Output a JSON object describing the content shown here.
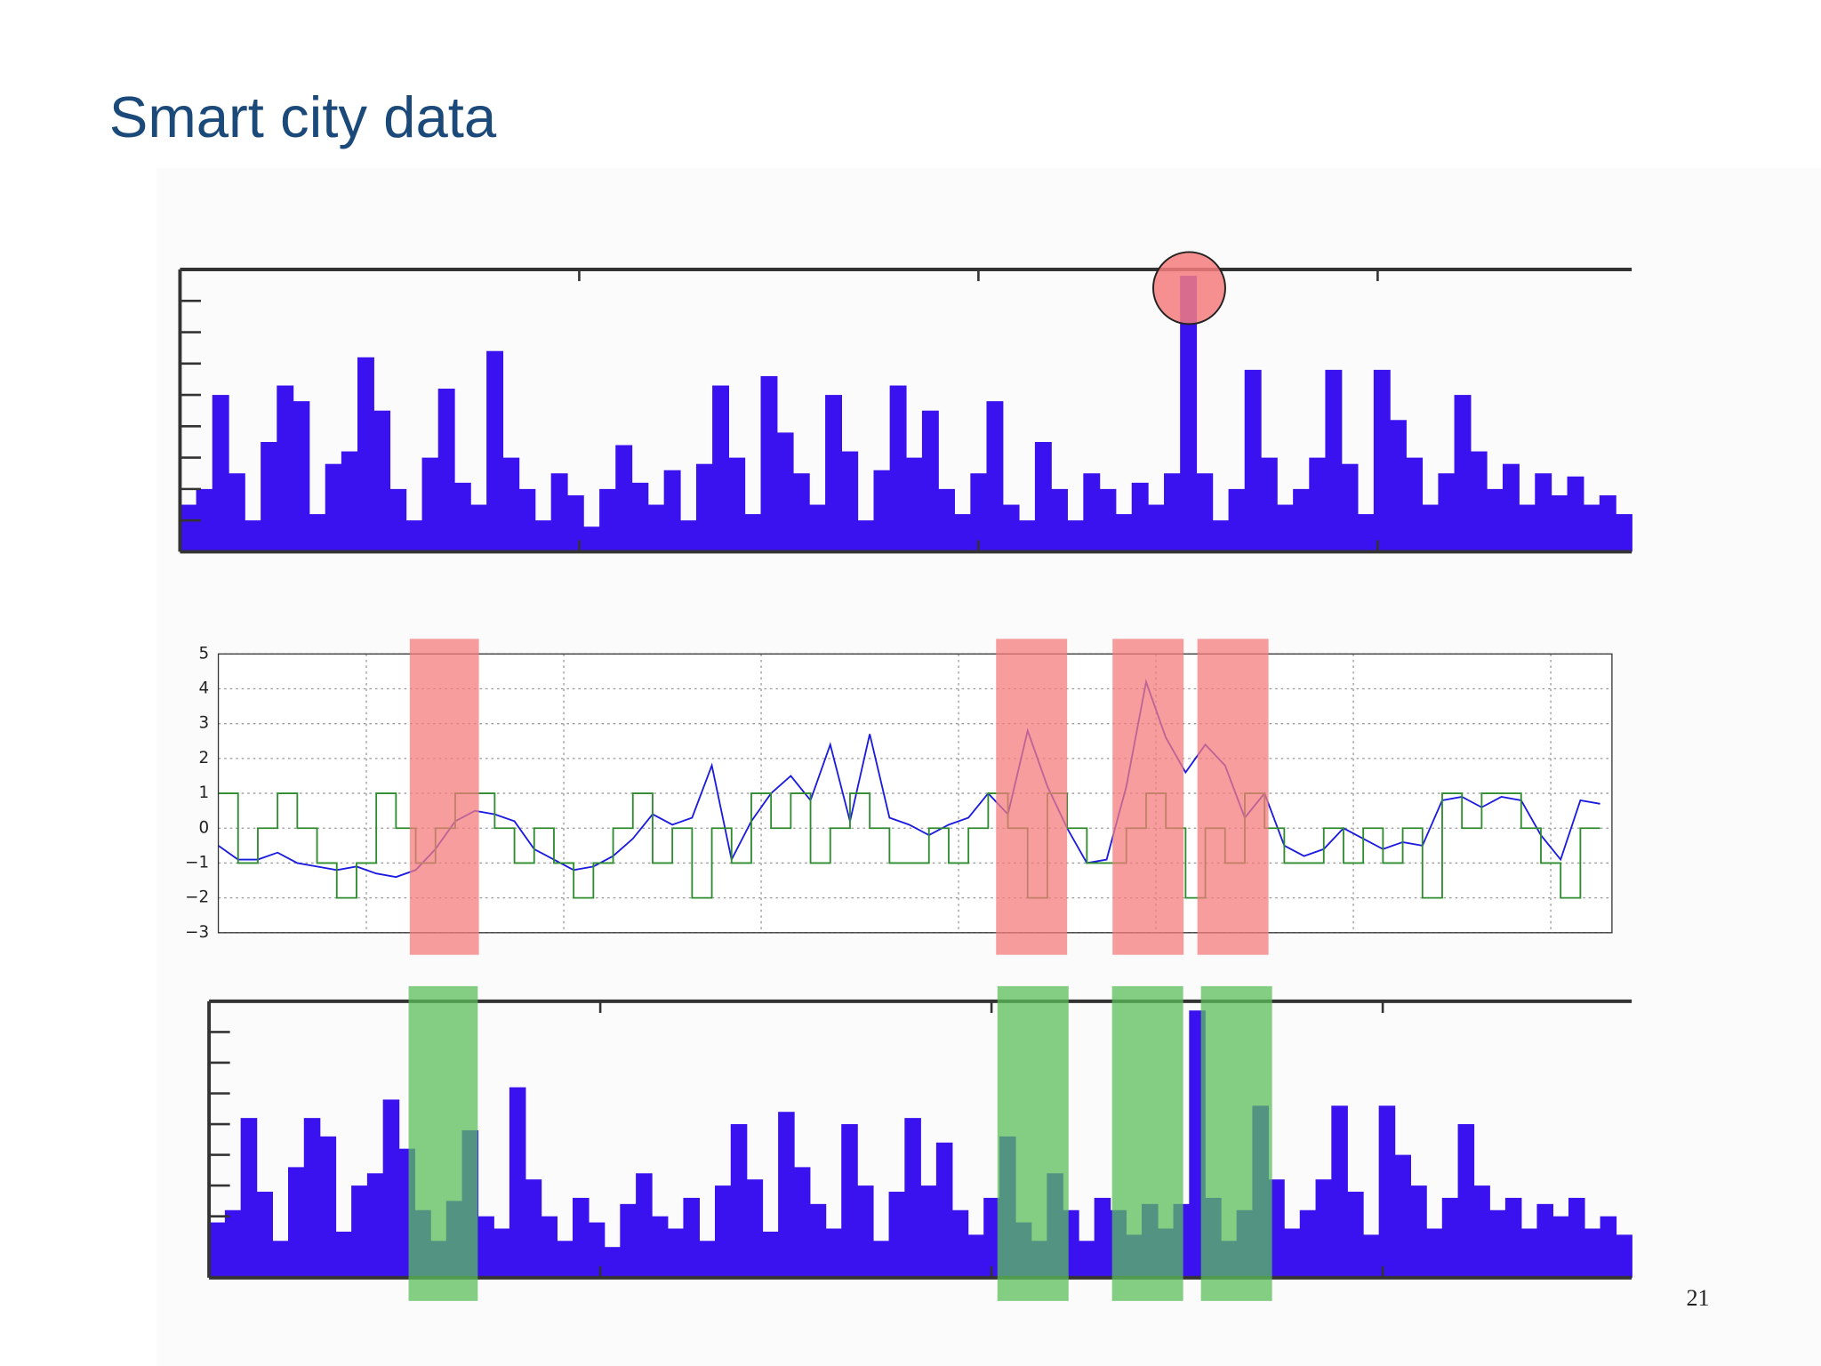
{
  "title": "Smart city data",
  "page_number": "21",
  "chart_data": [
    {
      "type": "bar",
      "color": "#3a12f0",
      "xlim": [
        6,
        741
      ],
      "ylim": [
        0,
        9
      ],
      "yticks": [
        1,
        2,
        3,
        4,
        5,
        6,
        7,
        8
      ],
      "values": [
        1.5,
        2.0,
        5.0,
        2.5,
        1.0,
        3.5,
        5.3,
        4.8,
        1.2,
        2.8,
        3.2,
        6.2,
        4.5,
        2.0,
        1.0,
        3.0,
        5.2,
        2.2,
        1.5,
        6.4,
        3.0,
        2.0,
        1.0,
        2.5,
        1.8,
        0.8,
        2.0,
        3.4,
        2.2,
        1.5,
        2.6,
        1.0,
        2.8,
        5.3,
        3.0,
        1.2,
        5.6,
        3.8,
        2.5,
        1.5,
        5.0,
        3.2,
        1.0,
        2.6,
        5.3,
        3.0,
        4.5,
        2.0,
        1.2,
        2.5,
        4.8,
        1.5,
        1.0,
        3.5,
        2.0,
        1.0,
        2.5,
        2.0,
        1.2,
        2.2,
        1.5,
        2.5,
        8.8,
        2.5,
        1.0,
        2.0,
        5.8,
        3.0,
        1.5,
        2.0,
        3.0,
        5.8,
        2.8,
        1.2,
        5.8,
        4.2,
        3.0,
        1.5,
        2.5,
        5.0,
        3.2,
        2.0,
        2.8,
        1.5,
        2.5,
        1.8,
        2.4,
        1.5,
        1.8,
        1.2
      ]
    },
    {
      "type": "line",
      "xlim": [
        25,
        731
      ],
      "xticks": [
        100,
        200,
        300,
        400,
        500,
        600,
        700
      ],
      "ylim": [
        -3,
        5
      ],
      "yticks": [
        {
          "value": -3,
          "label": "−3"
        },
        {
          "value": -2,
          "label": "−2"
        },
        {
          "value": -1,
          "label": "−1"
        },
        0,
        1,
        2,
        3,
        4,
        5
      ],
      "grid": true,
      "highlights": [
        [
          122,
          157
        ],
        [
          419,
          455
        ],
        [
          478,
          514
        ],
        [
          521,
          557
        ]
      ],
      "highlight_color": "#f47c7c",
      "x": [
        25,
        35,
        45,
        55,
        65,
        75,
        85,
        95,
        105,
        115,
        125,
        135,
        145,
        155,
        165,
        175,
        185,
        195,
        205,
        215,
        225,
        235,
        245,
        255,
        265,
        275,
        285,
        295,
        305,
        315,
        325,
        335,
        345,
        355,
        365,
        375,
        385,
        395,
        405,
        415,
        425,
        435,
        445,
        455,
        465,
        475,
        485,
        495,
        505,
        515,
        525,
        535,
        545,
        555,
        565,
        575,
        585,
        595,
        605,
        615,
        625,
        635,
        645,
        655,
        665,
        675,
        685,
        695,
        705,
        715,
        725
      ],
      "series": [
        {
          "color": "#1a1ae0",
          "values": [
            -0.5,
            -0.9,
            -0.9,
            -0.7,
            -1.0,
            -1.1,
            -1.2,
            -1.1,
            -1.3,
            -1.4,
            -1.2,
            -0.6,
            0.2,
            0.5,
            0.4,
            0.2,
            -0.6,
            -0.9,
            -1.2,
            -1.1,
            -0.8,
            -0.3,
            0.4,
            0.1,
            0.3,
            1.8,
            -0.9,
            0.2,
            1.0,
            1.5,
            0.8,
            2.4,
            0.2,
            2.7,
            0.3,
            0.1,
            -0.2,
            0.1,
            0.3,
            1.0,
            0.4,
            2.8,
            1.2,
            0.0,
            -1.0,
            -0.9,
            1.2,
            4.2,
            2.6,
            1.6,
            2.4,
            1.8,
            0.3,
            1.0,
            -0.5,
            -0.8,
            -0.6,
            0.0,
            -0.3,
            -0.6,
            -0.4,
            -0.5,
            0.8,
            0.9,
            0.6,
            0.9,
            0.8,
            -0.2,
            -0.9,
            0.8,
            0.7
          ]
        },
        {
          "color": "#2e8b2e",
          "step": true,
          "values": [
            1,
            -1,
            0,
            1,
            0,
            -1,
            -2,
            -1,
            1,
            0,
            -1,
            0,
            1,
            1,
            0,
            -1,
            0,
            -1,
            -2,
            -1,
            0,
            1,
            -1,
            0,
            -2,
            0,
            -1,
            1,
            0,
            1,
            -1,
            0,
            1,
            0,
            -1,
            -1,
            0,
            -1,
            0,
            1,
            0,
            -2,
            1,
            0,
            -1,
            -1,
            0,
            1,
            0,
            -2,
            0,
            -1,
            1,
            0,
            -1,
            -1,
            0,
            -1,
            0,
            -1,
            0,
            -2,
            1,
            0,
            1,
            1,
            0,
            -1,
            -2,
            0,
            0
          ]
        }
      ]
    },
    {
      "type": "bar",
      "color": "#3a12f0",
      "xlim": [
        21,
        741
      ],
      "ylim": [
        0,
        9
      ],
      "yticks": [
        2,
        3,
        4,
        5,
        6,
        7,
        8
      ],
      "highlights": [
        [
          122,
          157
        ],
        [
          420,
          456
        ],
        [
          478,
          514
        ],
        [
          523,
          559
        ]
      ],
      "highlight_color": "#5cbf5c",
      "values": [
        1.8,
        2.2,
        5.2,
        2.8,
        1.2,
        3.6,
        5.2,
        4.6,
        1.5,
        3.0,
        3.4,
        5.8,
        4.2,
        2.2,
        1.2,
        2.5,
        4.8,
        2.0,
        1.6,
        6.2,
        3.2,
        2.0,
        1.2,
        2.6,
        1.8,
        1.0,
        2.4,
        3.4,
        2.0,
        1.6,
        2.6,
        1.2,
        3.0,
        5.0,
        3.2,
        1.5,
        5.4,
        3.6,
        2.4,
        1.6,
        5.0,
        3.0,
        1.2,
        2.8,
        5.2,
        3.0,
        4.4,
        2.2,
        1.4,
        2.6,
        4.6,
        1.8,
        1.2,
        3.4,
        2.2,
        1.2,
        2.6,
        2.2,
        1.4,
        2.4,
        1.6,
        2.4,
        8.7,
        2.6,
        1.2,
        2.2,
        5.6,
        3.2,
        1.6,
        2.2,
        3.2,
        5.6,
        2.8,
        1.4,
        5.6,
        4.0,
        3.0,
        1.6,
        2.6,
        5.0,
        3.0,
        2.2,
        2.6,
        1.6,
        2.4,
        2.0,
        2.6,
        1.6,
        2.0,
        1.4
      ]
    }
  ]
}
